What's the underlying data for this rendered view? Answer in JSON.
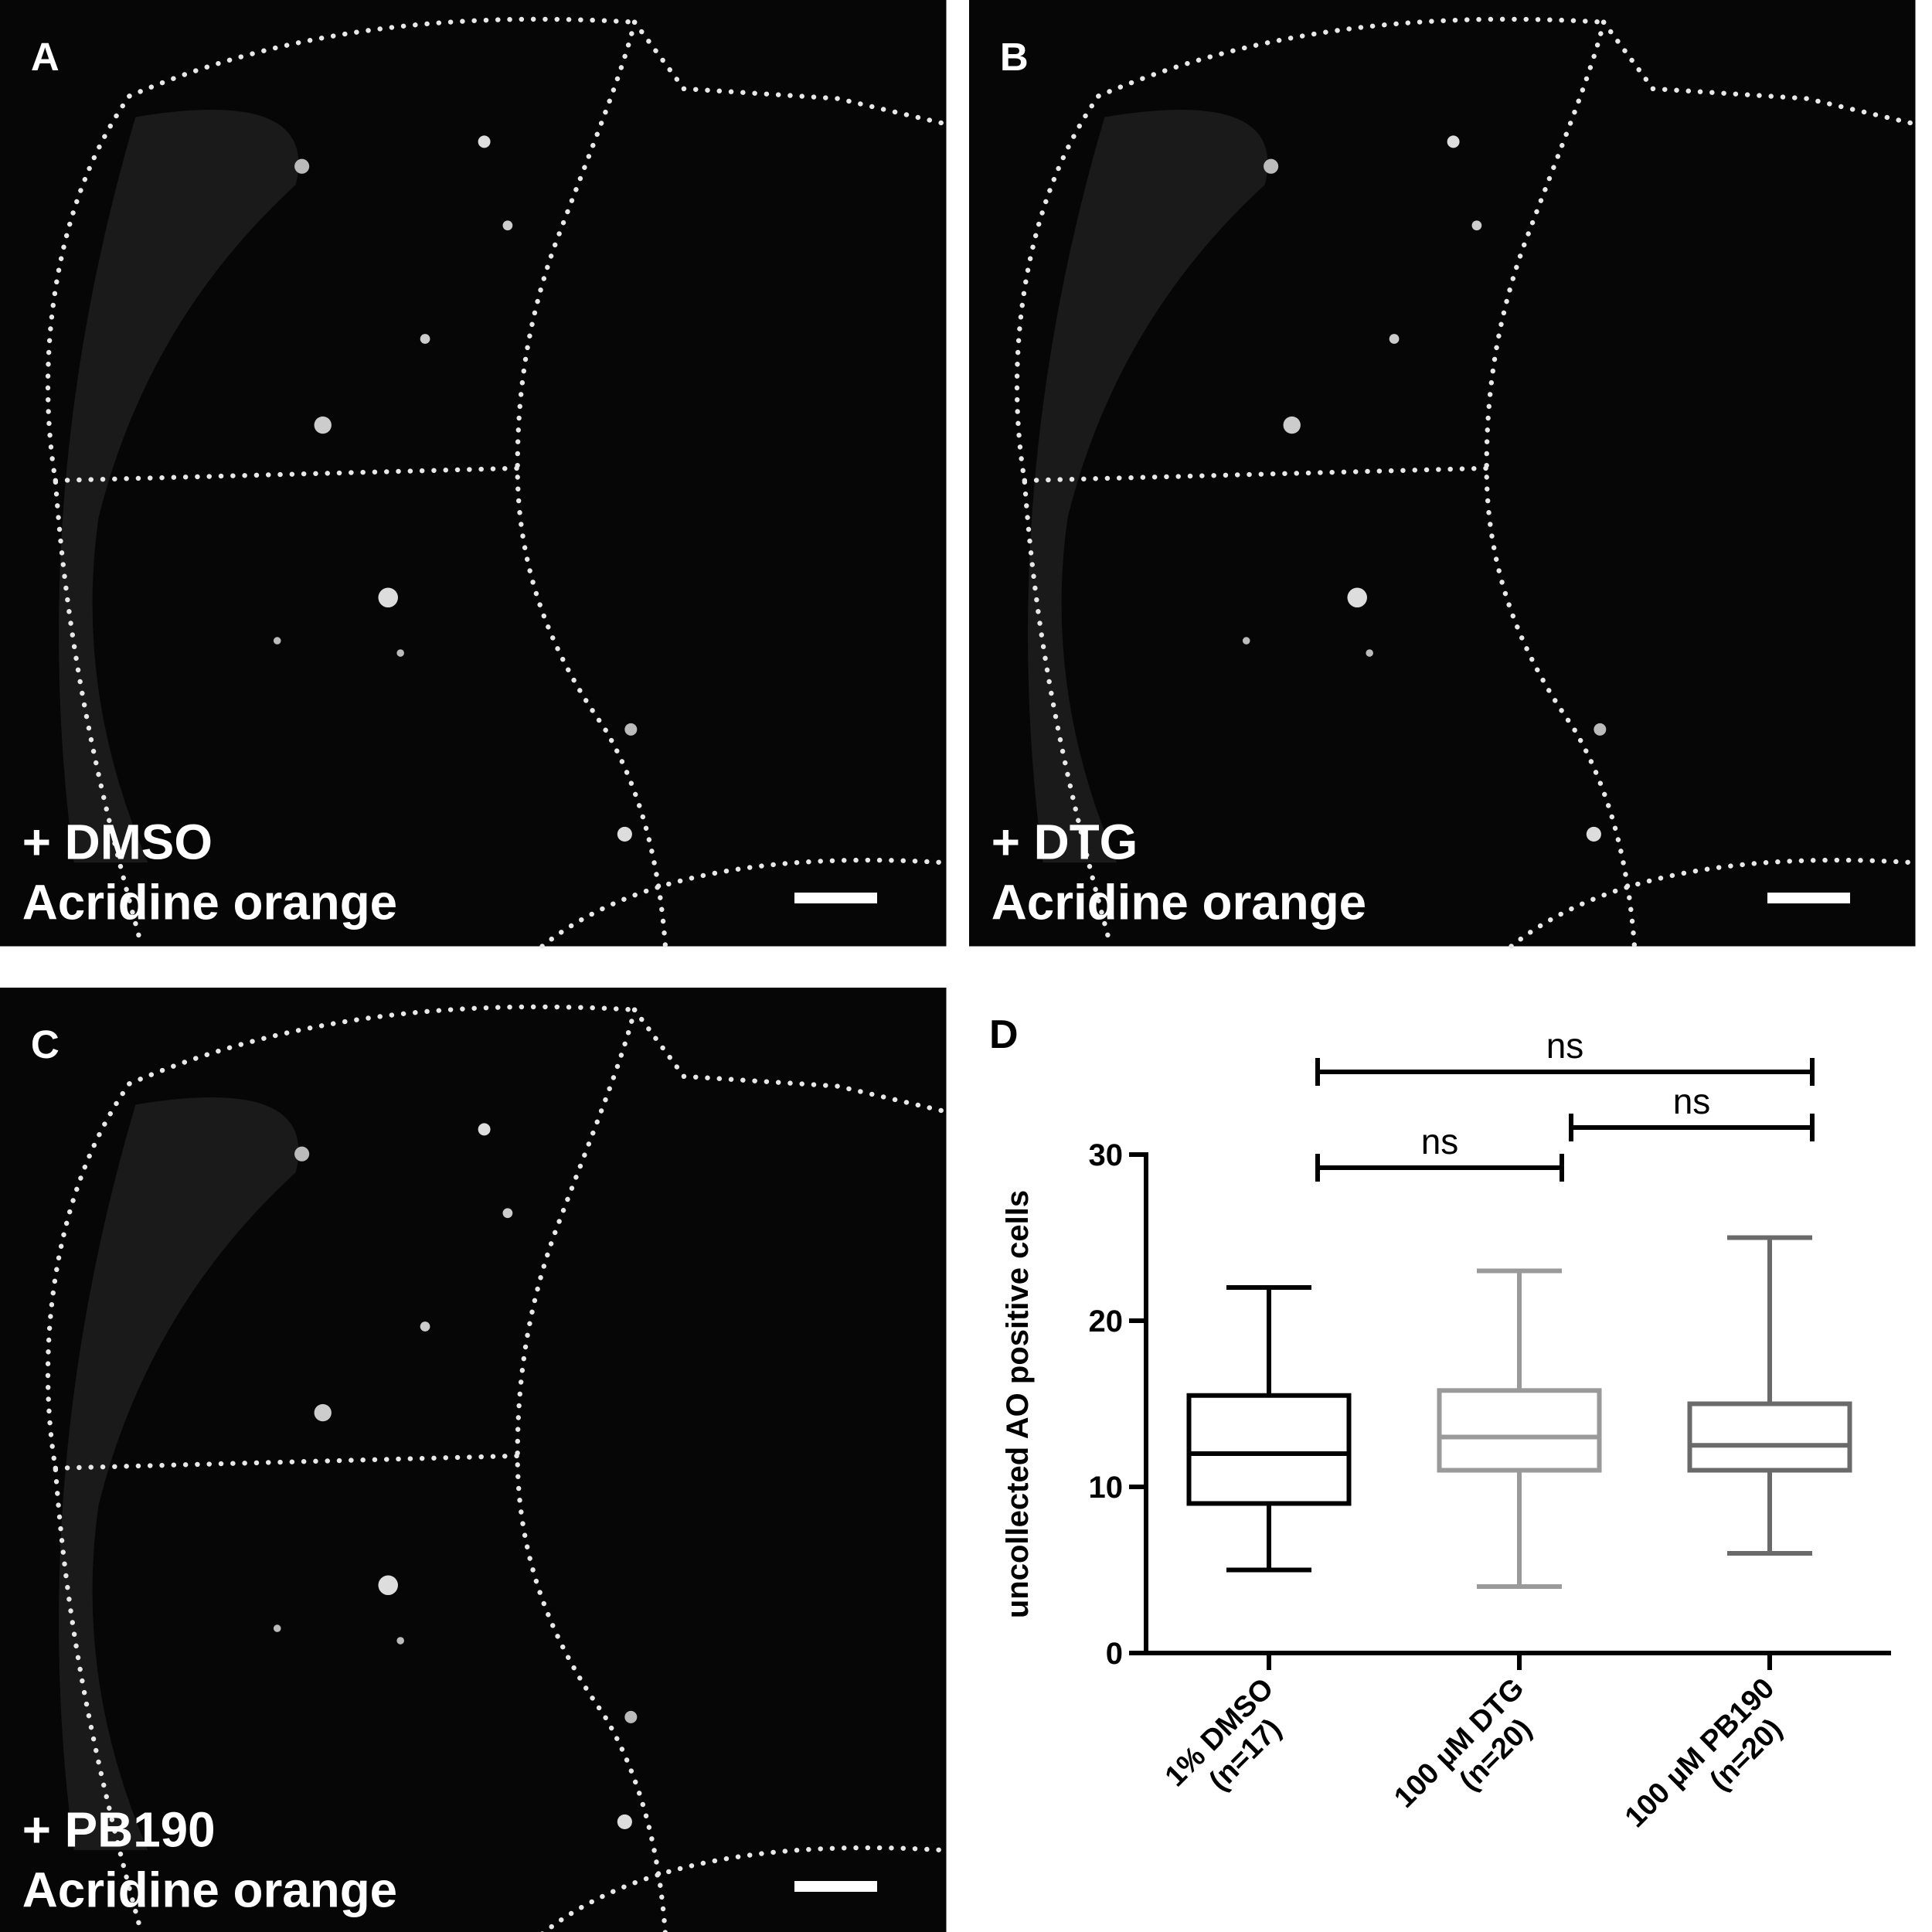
{
  "panels": [
    {
      "letter": "A",
      "treatment": "+ DMSO",
      "stain": "Acridine orange"
    },
    {
      "letter": "B",
      "treatment": "+ DTG",
      "stain": "Acridine orange"
    },
    {
      "letter": "C",
      "treatment": "+ PB190",
      "stain": "Acridine orange"
    }
  ],
  "chart_data": {
    "type": "box",
    "panel_letter": "D",
    "ylabel": "uncollected AO positive cells",
    "categories": [
      "1% DMSO",
      "100 µM DTG",
      "100 µM PB190"
    ],
    "category_counts": [
      "(n=17)",
      "(n=20)",
      "(n=20)"
    ],
    "boxes": [
      {
        "min": 5,
        "q1": 9,
        "median": 12,
        "q3": 15.5,
        "max": 22,
        "color": "#000000"
      },
      {
        "min": 4,
        "q1": 11,
        "median": 13,
        "q3": 15.8,
        "max": 23,
        "color": "#9a9a9a"
      },
      {
        "min": 6,
        "q1": 11,
        "median": 12.5,
        "q3": 15,
        "max": 25,
        "color": "#6a6a6a"
      }
    ],
    "ylim": [
      0,
      30
    ],
    "yticks": [
      0,
      10,
      20,
      30
    ],
    "annotations": [
      {
        "text": "ns",
        "between": [
          "1% DMSO",
          "100 µM PB190"
        ]
      },
      {
        "text": "ns",
        "between": [
          "1% DMSO",
          "100 µM DTG"
        ]
      },
      {
        "text": "ns",
        "between": [
          "100 µM DTG",
          "100 µM PB190"
        ]
      }
    ]
  }
}
